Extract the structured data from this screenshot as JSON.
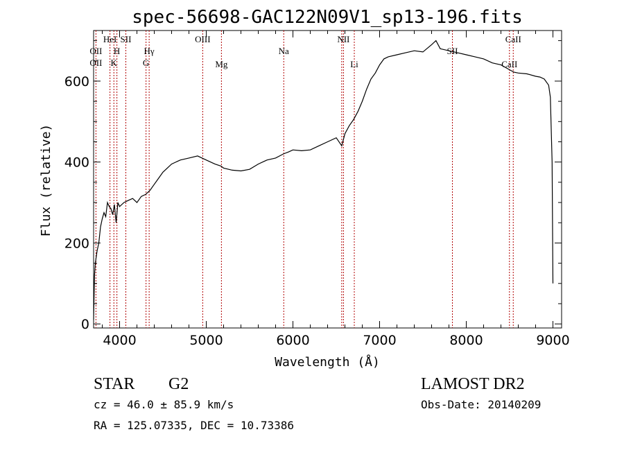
{
  "chart_data": {
    "type": "line",
    "title": "spec-56698-GAC122N09V1_sp13-196.fits",
    "xlabel": "Wavelength (Å)",
    "ylabel": "Flux (relative)",
    "xlim": [
      3700,
      9100
    ],
    "ylim": [
      -10,
      725
    ],
    "xticks": [
      4000,
      5000,
      6000,
      7000,
      8000,
      9000
    ],
    "yticks": [
      0,
      200,
      400,
      600
    ],
    "grid": false,
    "series": [
      {
        "x": [
          3700,
          3710,
          3720,
          3740,
          3760,
          3780,
          3800,
          3820,
          3840,
          3860,
          3880,
          3900,
          3920,
          3940,
          3960,
          3980,
          4000,
          4050,
          4100,
          4150,
          4200,
          4250,
          4300,
          4350,
          4400,
          4450,
          4500,
          4550,
          4600,
          4700,
          4800,
          4900,
          5000,
          5100,
          5170,
          5200,
          5300,
          5400,
          5500,
          5600,
          5700,
          5800,
          5890,
          5950,
          6000,
          6100,
          6200,
          6300,
          6400,
          6500,
          6563,
          6600,
          6650,
          6700,
          6750,
          6800,
          6850,
          6900,
          6950,
          7000,
          7050,
          7100,
          7200,
          7300,
          7400,
          7500,
          7600,
          7650,
          7700,
          7800,
          7900,
          8000,
          8100,
          8200,
          8300,
          8400,
          8500,
          8550,
          8600,
          8700,
          8800,
          8850,
          8900,
          8950,
          8970,
          8990,
          9000
        ],
        "values": [
          10,
          120,
          150,
          180,
          200,
          240,
          260,
          275,
          265,
          300,
          290,
          285,
          270,
          295,
          250,
          300,
          290,
          300,
          305,
          310,
          300,
          315,
          320,
          330,
          345,
          360,
          375,
          385,
          395,
          405,
          410,
          415,
          405,
          395,
          390,
          385,
          380,
          378,
          382,
          395,
          405,
          410,
          420,
          425,
          430,
          428,
          430,
          440,
          450,
          460,
          440,
          470,
          490,
          505,
          525,
          550,
          580,
          605,
          620,
          640,
          655,
          660,
          665,
          670,
          675,
          672,
          690,
          700,
          680,
          675,
          670,
          665,
          660,
          655,
          645,
          640,
          628,
          622,
          620,
          618,
          612,
          610,
          605,
          590,
          560,
          400,
          100
        ]
      }
    ],
    "spectral_lines": [
      {
        "label": "OII",
        "x": 3727,
        "row": "top"
      },
      {
        "label": "OII",
        "x": 3727,
        "row": "bottom"
      },
      {
        "label": "HeI",
        "x": 3889,
        "row": "upper"
      },
      {
        "label": "H",
        "x": 3969,
        "row": "top"
      },
      {
        "label": "K",
        "x": 3934,
        "row": "bottom"
      },
      {
        "label": "SII",
        "x": 4072,
        "row": "upper"
      },
      {
        "label": "Hγ",
        "x": 4341,
        "row": "top"
      },
      {
        "label": "G",
        "x": 4305,
        "row": "bottom"
      },
      {
        "label": "OIII",
        "x": 4959,
        "row": "upper"
      },
      {
        "label": "Mg",
        "x": 5175,
        "row": "lower"
      },
      {
        "label": "Na",
        "x": 5894,
        "row": "top"
      },
      {
        "label": "NII",
        "x": 6583,
        "row": "upper"
      },
      {
        "label": "Li",
        "x": 6708,
        "row": "lower"
      },
      {
        "label": "SII",
        "x": 7840,
        "row": "top"
      },
      {
        "label": "CaII",
        "x": 8542,
        "row": "upper"
      },
      {
        "label": "CaII",
        "x": 8498,
        "row": "lower"
      }
    ],
    "line_positions": [
      3727,
      3889,
      3934,
      3969,
      4072,
      4305,
      4341,
      4959,
      5175,
      5894,
      6563,
      6583,
      6708,
      7840,
      8498,
      8542
    ]
  },
  "info": {
    "object_class": "STAR",
    "subclass": "G2",
    "survey": "LAMOST DR2",
    "cz": "cz = 46.0 ± 85.9 km/s",
    "obs_date": "Obs-Date: 20140209",
    "coords": "RA = 125.07335, DEC =  10.73386"
  }
}
